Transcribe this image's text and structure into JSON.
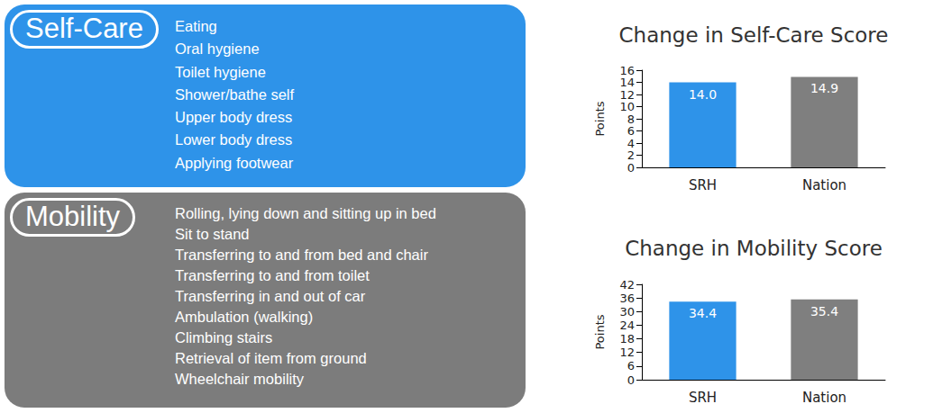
{
  "panels": [
    {
      "title": "Self-Care",
      "color": "#2e93e9",
      "items": [
        "Eating",
        "Oral hygiene",
        "Toilet hygiene",
        "Shower/bathe self",
        "Upper body dress",
        "Lower body dress",
        "Applying footwear"
      ]
    },
    {
      "title": "Mobility",
      "color": "#7c7c7c",
      "items": [
        "Rolling, lying down and sitting up in bed",
        "Sit to stand",
        "Transferring to and from bed and chair",
        "Transferring to and from toilet",
        "Transferring in and out of car",
        "Ambulation (walking)",
        "Climbing stairs",
        "Retrieval of item from ground",
        "Wheelchair mobility"
      ]
    }
  ],
  "chart_data": [
    {
      "type": "bar",
      "title": "Change in Self-Care Score",
      "y_label": "Points",
      "categories": [
        "SRH",
        "Nation"
      ],
      "values": [
        14.0,
        14.9
      ],
      "value_labels": [
        "14.0",
        "14.9"
      ],
      "colors": [
        "#2e93e9",
        "#7f7f7f"
      ],
      "ylim": [
        0,
        16
      ],
      "yticks": [
        0,
        2,
        4,
        6,
        8,
        10,
        12,
        14,
        16
      ],
      "grid": false,
      "data_labels": true
    },
    {
      "type": "bar",
      "title": "Change in Mobility Score",
      "y_label": "Points",
      "categories": [
        "SRH",
        "Nation"
      ],
      "values": [
        34.4,
        35.4
      ],
      "colors": [
        "#2e93e9",
        "#7f7f7f"
      ],
      "ylim": [
        0,
        42
      ],
      "yticks": [
        0,
        6,
        12,
        18,
        24,
        30,
        36,
        42
      ],
      "grid": false,
      "data_labels": true
    }
  ]
}
